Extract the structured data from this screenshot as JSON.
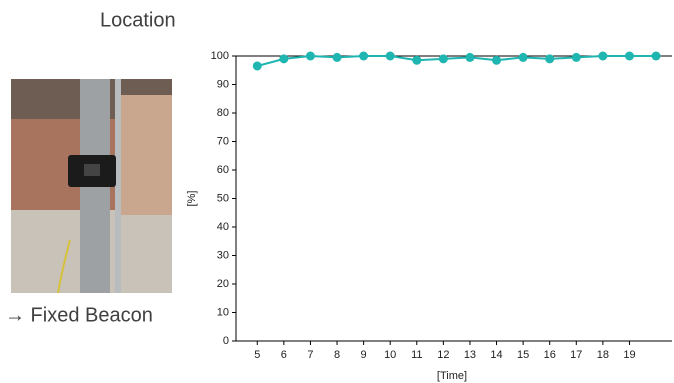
{
  "heading": "Location",
  "caption": "→ Fixed Beacon",
  "chart_data": {
    "type": "line",
    "x": [
      5,
      6,
      7,
      8,
      9,
      10,
      11,
      12,
      13,
      14,
      15,
      16,
      17,
      18,
      19,
      20
    ],
    "series": [
      {
        "color": "#1fb5b0",
        "values": [
          96.5,
          99,
          100,
          99.5,
          100,
          100,
          98.5,
          99,
          99.5,
          98.5,
          99.5,
          99,
          99.5,
          100,
          100,
          100
        ]
      }
    ],
    "xlim": [
      4.2,
      20.6
    ],
    "ylim": [
      0,
      100
    ],
    "xticks": [
      5,
      6,
      7,
      8,
      9,
      10,
      11,
      12,
      13,
      14,
      15,
      16,
      17,
      18,
      19
    ],
    "yticks": [
      0,
      10,
      20,
      30,
      40,
      50,
      60,
      70,
      80,
      90,
      100
    ],
    "xlabel": "[Time]",
    "ylabel": "[%]",
    "grid": false
  }
}
